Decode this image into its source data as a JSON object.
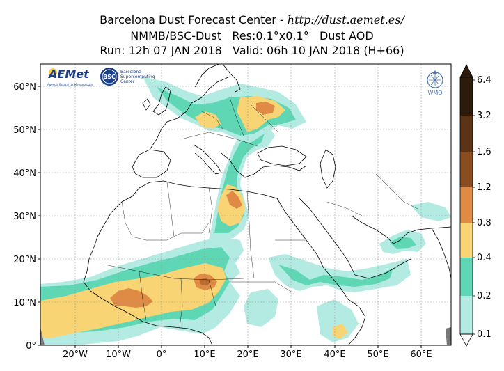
{
  "header": {
    "line1_prefix": "Barcelona Dust Forecast Center - ",
    "line1_url": "http://dust.aemet.es/",
    "line2": "NMMB/BSC-Dust   Res:0.1°x0.1°   Dust AOD",
    "line3": "Run: 12h 07 JAN 2018   Valid: 06h 10 JAN 2018 (H+66)"
  },
  "map": {
    "lon_range": [
      -28,
      67
    ],
    "lat_range": [
      0,
      65
    ],
    "lon_ticks": [
      "20°W",
      "10°W",
      "0°",
      "10°E",
      "20°E",
      "30°E",
      "40°E",
      "50°E",
      "60°E"
    ],
    "lat_ticks": [
      "0°",
      "10°N",
      "20°N",
      "30°N",
      "40°N",
      "50°N",
      "60°N"
    ],
    "grid": true
  },
  "colorbar": {
    "labels": [
      "0.1",
      "0.2",
      "0.4",
      "0.8",
      "1.2",
      "1.6",
      "3.2",
      "6.4"
    ],
    "colors": [
      "#b3ebe3",
      "#5fd7b5",
      "#f8d475",
      "#e08b45",
      "#b86a2a",
      "#8a4d1f",
      "#5b3316",
      "#2c1a0b"
    ]
  },
  "logos": {
    "aemet_name": "AEMet",
    "aemet_sub": "Agencia Estatal de Meteorología",
    "bsc_badge": "BSC",
    "bsc_name1": "Barcelona",
    "bsc_name2": "Supercomputing",
    "bsc_name3": "Center",
    "wmo_name": "WMO"
  },
  "colors": {
    "dust_01": "#b3ebe3",
    "dust_02": "#5fd7b5",
    "dust_04": "#f8d475",
    "dust_08": "#e08b45",
    "dust_12": "#b86a2a"
  }
}
